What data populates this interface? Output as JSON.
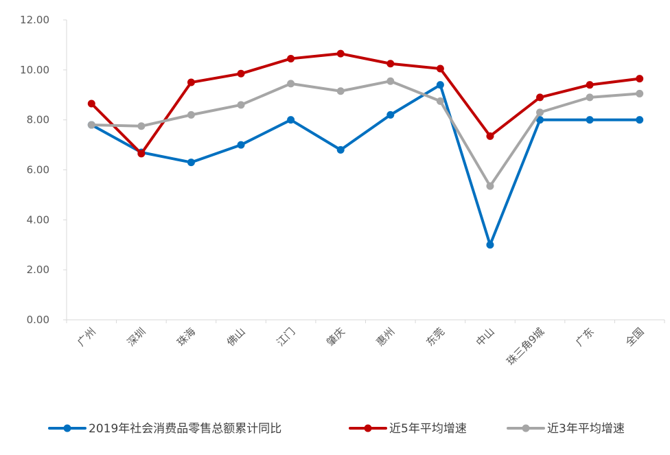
{
  "chart_data": {
    "type": "line",
    "title": "",
    "xlabel": "",
    "ylabel": "",
    "ylim": [
      0,
      12
    ],
    "yticks": [
      "0.00",
      "2.00",
      "4.00",
      "6.00",
      "8.00",
      "10.00",
      "12.00"
    ],
    "grid": false,
    "legend_position": "bottom",
    "categories": [
      "广州",
      "深圳",
      "珠海",
      "佛山",
      "江门",
      "肇庆",
      "惠州",
      "东莞",
      "中山",
      "珠三角9城",
      "广东",
      "全国"
    ],
    "series": [
      {
        "name": "2019年社会消费品零售总额累计同比",
        "color": "#0070C0",
        "values": [
          7.8,
          6.7,
          6.3,
          7.0,
          8.0,
          6.8,
          8.2,
          9.4,
          3.0,
          8.0,
          8.0,
          8.0
        ]
      },
      {
        "name": "近5年平均增速",
        "color": "#C00000",
        "values": [
          8.65,
          6.65,
          9.5,
          9.85,
          10.45,
          10.65,
          10.25,
          10.05,
          7.35,
          8.9,
          9.4,
          9.65
        ]
      },
      {
        "name": "近3年平均增速",
        "color": "#A6A6A6",
        "values": [
          7.8,
          7.75,
          8.2,
          8.6,
          9.45,
          9.15,
          9.55,
          8.75,
          5.35,
          8.3,
          8.9,
          9.05
        ]
      }
    ]
  }
}
